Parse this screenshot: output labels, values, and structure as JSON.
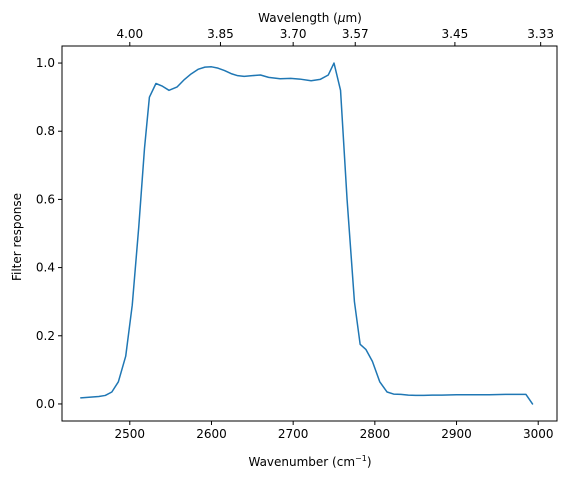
{
  "chart_data": {
    "type": "line",
    "title": "",
    "xlabel": "Wavenumber (cm",
    "xlabel_sup": "−1",
    "xlabel_close": ")",
    "ylabel": "Filter response",
    "top_xlabel_prefix": "Wavelength (",
    "top_xlabel_mu": "μ",
    "top_xlabel_suffix": "m)",
    "xlim": [
      2417,
      3023
    ],
    "ylim": [
      -0.05,
      1.05
    ],
    "xticks": [
      {
        "value": 2500,
        "label": "2500"
      },
      {
        "value": 2600,
        "label": "2600"
      },
      {
        "value": 2700,
        "label": "2700"
      },
      {
        "value": 2800,
        "label": "2800"
      },
      {
        "value": 2900,
        "label": "2900"
      },
      {
        "value": 3000,
        "label": "3000"
      }
    ],
    "yticks": [
      {
        "value": 0.0,
        "label": "0.0"
      },
      {
        "value": 0.2,
        "label": "0.2"
      },
      {
        "value": 0.4,
        "label": "0.4"
      },
      {
        "value": 0.6,
        "label": "0.6"
      },
      {
        "value": 0.8,
        "label": "0.8"
      },
      {
        "value": 1.0,
        "label": "1.0"
      }
    ],
    "top_ticks": [
      {
        "wavenumber": 2500,
        "label": "4.00"
      },
      {
        "wavenumber": 2611,
        "label": "3.85"
      },
      {
        "wavenumber": 2700,
        "label": "3.70"
      },
      {
        "wavenumber": 2776,
        "label": "3.57"
      },
      {
        "wavenumber": 2898,
        "label": "3.45"
      },
      {
        "wavenumber": 3003,
        "label": "3.33"
      }
    ],
    "grid": false,
    "legend": "none",
    "colors": {
      "line": "#1f77b4",
      "axes": "#000000"
    },
    "series": [
      {
        "x": [
          2440,
          2452,
          2462,
          2470,
          2478,
          2486,
          2495,
          2503,
          2511,
          2518,
          2524,
          2532,
          2540,
          2548,
          2558,
          2567,
          2575,
          2584,
          2592,
          2600,
          2608,
          2616,
          2624,
          2632,
          2640,
          2650,
          2660,
          2670,
          2684,
          2697,
          2708,
          2722,
          2733,
          2743,
          2750,
          2758,
          2766,
          2775,
          2782,
          2789,
          2797,
          2806,
          2815,
          2823,
          2832,
          2841,
          2850,
          2860,
          2870,
          2882,
          2900,
          2920,
          2940,
          2960,
          2985,
          2993
        ],
        "y": [
          0.018,
          0.02,
          0.022,
          0.025,
          0.035,
          0.065,
          0.14,
          0.29,
          0.52,
          0.75,
          0.9,
          0.94,
          0.932,
          0.92,
          0.93,
          0.952,
          0.968,
          0.982,
          0.988,
          0.989,
          0.985,
          0.978,
          0.969,
          0.963,
          0.961,
          0.963,
          0.965,
          0.958,
          0.954,
          0.955,
          0.953,
          0.948,
          0.952,
          0.965,
          1.0,
          0.92,
          0.6,
          0.3,
          0.175,
          0.16,
          0.125,
          0.065,
          0.035,
          0.029,
          0.028,
          0.026,
          0.025,
          0.025,
          0.026,
          0.026,
          0.027,
          0.027,
          0.027,
          0.028,
          0.028,
          0.0
        ]
      }
    ]
  }
}
